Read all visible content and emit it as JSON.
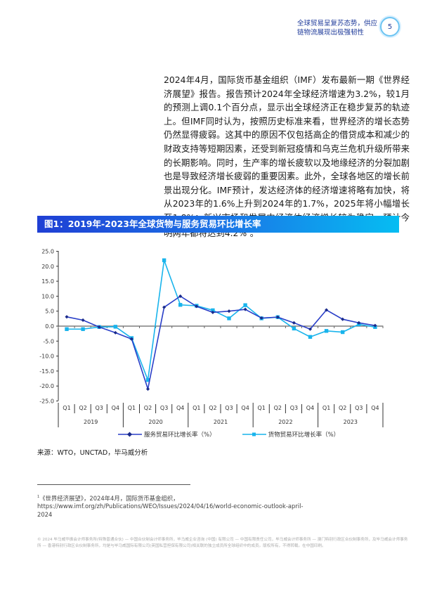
{
  "header": {
    "section_title": "全球贸易呈复苏态势，供应链物流展现出极强韧性",
    "page_number": "5"
  },
  "body": {
    "paragraph": "2024年4月，国际货币基金组织（IMF）发布最新一期《世界经济展望》报告。报告预计2024年全球经济增速为3.2%，较1月的预测上调0.1个百分点，显示出全球经济正在稳步复苏的轨迹上。但IMF同时认为，按照历史标准来看，世界经济的增长态势仍然显得疲弱。这其中的原因不仅包括高企的借贷成本和减少的财政支持等短期因素，还受到新冠疫情和乌克兰危机升级所带来的长期影响。同时，生产率的增长疲软以及地缘经济的分裂加剧也是导致经济增长疲弱的重要因素。此外，全球各地区的增长前景出现分化。IMF预计，发达经济体的经济增速将略有加快，将从2023年的1.6%上升到2024年的1.7%，2025年将小幅增长至1.8%；新兴市场和发展中经济体经济增长较为稳定，预计今明两年都将达到4.2%",
    "footnote_ref": "1",
    "paragraph_end": "。"
  },
  "figure": {
    "title": "图1：2019年-2023年全球货物与服务贸易环比增长率",
    "source": "来源：WTO，UNCTAD，毕马威分析"
  },
  "chart_data": {
    "type": "line",
    "title": "图1：2019年-2023年全球货物与服务贸易环比增长率",
    "xlabel": "",
    "ylabel": "",
    "ylim": [
      -25.0,
      25.0
    ],
    "yticks": [
      "25.0",
      "20.0",
      "15.0",
      "10.0",
      "5.0",
      "0.0",
      "-5.0",
      "-10.0",
      "-15.0",
      "-20.0",
      "-25.0"
    ],
    "grid": false,
    "legend_position": "bottom",
    "years": [
      "2019",
      "2020",
      "2021",
      "2022",
      "2023"
    ],
    "quarters": [
      "Q1",
      "Q2",
      "Q3",
      "Q4"
    ],
    "categories": [
      "2019 Q1",
      "2019 Q2",
      "2019 Q3",
      "2019 Q4",
      "2020 Q1",
      "2020 Q2",
      "2020 Q3",
      "2020 Q4",
      "2021 Q1",
      "2021 Q2",
      "2021 Q3",
      "2021 Q4",
      "2022 Q1",
      "2022 Q2",
      "2022 Q3",
      "2022 Q4",
      "2023 Q1",
      "2023 Q2",
      "2023 Q3",
      "2023 Q4"
    ],
    "series": [
      {
        "name": "服务贸易环比增长率（%）",
        "color": "#2a3fc8",
        "marker": "diamond",
        "values": [
          3.1,
          2.0,
          -0.3,
          -2.2,
          -4.3,
          -21.0,
          6.3,
          10.0,
          6.6,
          4.6,
          5.0,
          5.6,
          2.7,
          3.0,
          1.1,
          -1.0,
          5.4,
          2.3,
          1.1,
          0.2
        ]
      },
      {
        "name": "货物贸易环比增长率（%）",
        "color": "#19b4ec",
        "marker": "square",
        "values": [
          -1.0,
          -1.0,
          -0.3,
          -0.2,
          -4.0,
          -18.0,
          22.0,
          7.1,
          6.8,
          5.3,
          2.6,
          7.0,
          2.6,
          3.0,
          -0.8,
          -3.6,
          -1.6,
          -2.0,
          0.6,
          -0.3
        ]
      }
    ]
  },
  "footnote": {
    "number": "1",
    "text": "《世界经济展望》，2024年4月，国际货币基金组织，",
    "url": "https://www.imf.org/zh/Publications/WEO/Issues/2024/04/16/world-economic-outlook-april-2024"
  },
  "copyright": "© 2024 毕马威华振会计师事务所(特殊普通合伙) — 中国合伙制会计师事务所，毕马威企业咨询 (中国) 有限公司 — 中国有限责任公司，毕马威会计师事务所 — 澳门特别行政区合伙制事务所，及毕马威会计师事务所 — 香港特别行政区合伙制事务所，均是与毕马威国际有限公司(英国私营担保有限公司)相关联的独立成员所全球组织中的成员。版权所有，不得转载。在中国印刷。"
}
